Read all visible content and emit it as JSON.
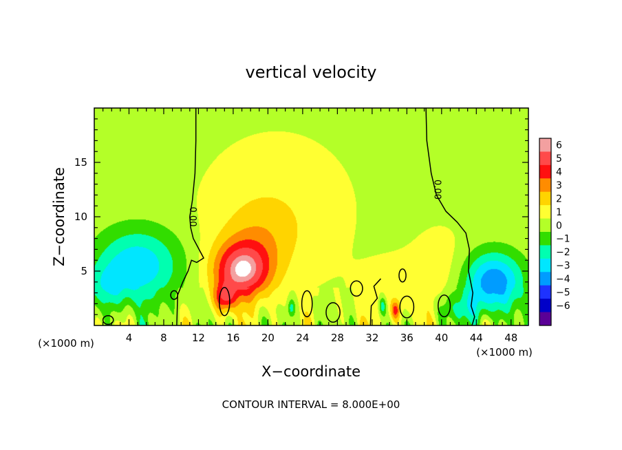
{
  "chart_data": {
    "type": "heatmap",
    "title": "vertical velocity",
    "xlabel": "X−coordinate",
    "ylabel": "Z−coordinate",
    "x_unit_left": "(×1000 m)",
    "x_unit_right": "(×1000 m)",
    "xlim": [
      0,
      50
    ],
    "ylim": [
      0,
      20
    ],
    "x_ticks": [
      4,
      8,
      12,
      16,
      20,
      24,
      28,
      32,
      36,
      40,
      44,
      48
    ],
    "y_ticks": [
      5,
      10,
      15
    ],
    "colorbar": {
      "levels": [
        6,
        5,
        4,
        3,
        2,
        1,
        0,
        -1,
        -2,
        -3,
        -4,
        -5,
        -6
      ],
      "labels": [
        "6",
        "5",
        "4",
        "3",
        "2",
        "1",
        "0",
        "−1",
        "−2",
        "−3",
        "−4",
        "−5",
        "−6"
      ],
      "colors": [
        "#f3a0a0",
        "#ff4a4a",
        "#ff1010",
        "#ff8c00",
        "#ffd400",
        "#ffff32",
        "#b4ff28",
        "#32dd00",
        "#00ffb0",
        "#00e6ff",
        "#009cff",
        "#1e32ff",
        "#0000c8",
        "#5a0096"
      ]
    },
    "contour_label": "0.00",
    "contour_interval_text": "CONTOUR INTERVAL = 8.000E+00",
    "features": [
      {
        "type": "updraft",
        "x": 16.5,
        "z": 4.5,
        "w": 6
      },
      {
        "type": "updraft",
        "x": 22.0,
        "z": 10.0,
        "w": 1
      },
      {
        "type": "downdraft",
        "x": 5.0,
        "z": 5.0,
        "w": -4
      },
      {
        "type": "downdraft",
        "x": 46.0,
        "z": 4.0,
        "w": -5
      }
    ]
  }
}
